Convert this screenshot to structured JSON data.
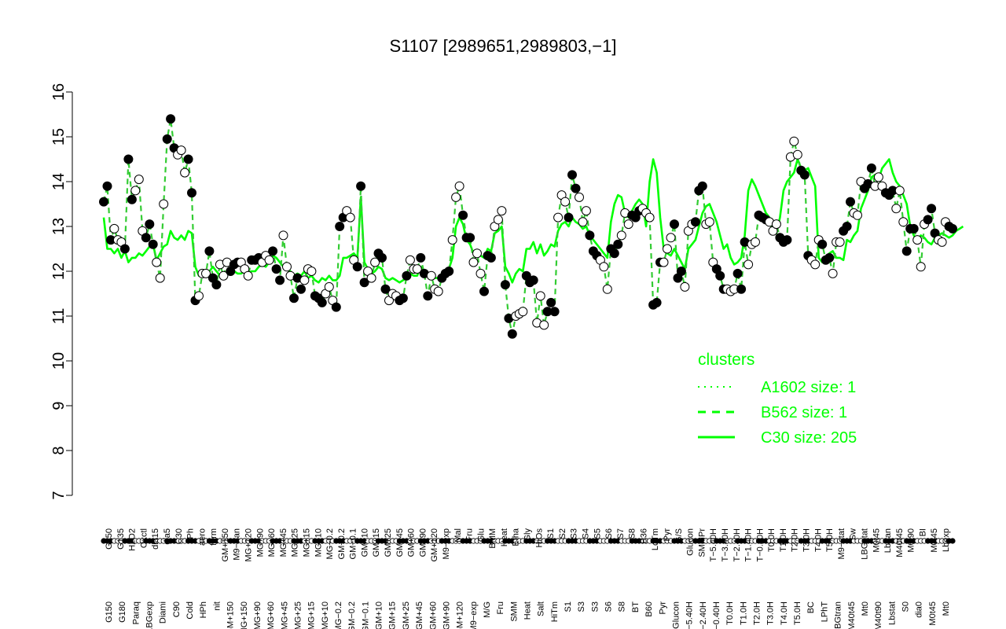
{
  "chart_data": {
    "type": "line",
    "title": "S1107 [2989651,2989803,−1]",
    "xlabel": "",
    "ylabel": "",
    "ylim": [
      7,
      16
    ],
    "yticks": [
      7,
      8,
      9,
      10,
      11,
      12,
      13,
      14,
      15,
      16
    ],
    "grid": false,
    "legend_position": "right",
    "legend": {
      "title": "clusters",
      "entries": [
        {
          "label": "A1602 size: 1",
          "style": "dotted"
        },
        {
          "label": "B562 size: 1",
          "style": "dashed"
        },
        {
          "label": "C30 size: 205",
          "style": "solid"
        }
      ]
    },
    "color": "#00ff00",
    "tick_labels_top": [
      "G150",
      "G135",
      "H2O2",
      "Oxctl",
      "dia15",
      "dia5",
      "C30",
      "LPh",
      "aero",
      "ferm",
      "GM+150",
      "M9−tran",
      "MG+120",
      "MG+90",
      "MG+60",
      "MG+45",
      "MG+25",
      "MG+15",
      "MG+10",
      "MG−0.2",
      "GM−0.2",
      "GM−0.1",
      "GM+10",
      "GM+15",
      "GM+25",
      "GM+45",
      "GM+60",
      "GM+90",
      "GM+120",
      "M9−exp",
      "Mal",
      "Fru",
      "Glu",
      "BMM",
      "Heat",
      "Etha",
      "Gly",
      "HiOs",
      "S1",
      "S2",
      "S3",
      "S4",
      "S5",
      "S6",
      "S7",
      "S8",
      "B36",
      "LoTm",
      "Pyr",
      "G/S",
      "Glucon",
      "SMMPr",
      "T−5.40H",
      "T−3.40H",
      "T−2.40H",
      "T−1.40H",
      "T−0.40H",
      "T0.0H",
      "T1.0H",
      "T2.0H",
      "T3.0H",
      "T4.0H",
      "T5.0H",
      "M9−stat",
      "Sw",
      "LBGstat",
      "M0t45",
      "Lbtran",
      "M40t45",
      "M0t90",
      "BI",
      "M0t45",
      "Lbexp"
    ],
    "tick_labels_bottom": [
      "G150",
      "G180",
      "Paraq",
      "LBGexp",
      "Diami",
      "C90",
      "Cold",
      "HPh",
      "nit",
      "GM+150",
      "MG+150",
      "MG+90",
      "MG+60",
      "MG+45",
      "MG+25",
      "MG+15",
      "MG+10",
      "MG−0.2",
      "GM−0.2",
      "GM−0.1",
      "GM+10",
      "GM+15",
      "GM+25",
      "GM+45",
      "GM+60",
      "GM+90",
      "GM+120",
      "M9−exp",
      "M/G",
      "Fru",
      "SMM",
      "Heat",
      "Salt",
      "HiTm",
      "S1",
      "S3",
      "S3",
      "S6",
      "S8",
      "BT",
      "B60",
      "Pyr",
      "Glucon",
      "T−5.40H",
      "T−2.40H",
      "T−0.40H",
      "T0.0H",
      "T1.0H",
      "T2.0H",
      "T3.0H",
      "T4.0H",
      "T5.0H",
      "BC",
      "LPhT",
      "LBGtran",
      "M40t45",
      "Mt0",
      "M40t90",
      "Lbstat",
      "S0",
      "dia0",
      "M0t45",
      "Mt0"
    ],
    "series": [
      {
        "name": "",
        "values": [
          13.55,
          13.9,
          12.7,
          12.95,
          12.7,
          12.65,
          12.5,
          14.5,
          13.6,
          13.8,
          14.05,
          12.9,
          12.75,
          13.05,
          12.6,
          12.2,
          11.85,
          13.5,
          14.95,
          15.4,
          14.75,
          14.6,
          14.7,
          14.2,
          14.5,
          13.75,
          11.35,
          11.45,
          11.95,
          11.95,
          12.45,
          11.85,
          11.7,
          12.15,
          11.9,
          12.2,
          12.0,
          12.15,
          12.2,
          12.2,
          12.05,
          11.9,
          12.25,
          12.25,
          12.3,
          12.2,
          12.35,
          12.25,
          12.45,
          12.05,
          11.8,
          12.8,
          12.1,
          11.9,
          11.4,
          11.85,
          11.6,
          11.8,
          12.05,
          12.0,
          11.45,
          11.4,
          11.3,
          11.5,
          11.65,
          11.35,
          11.2,
          13.0,
          13.2,
          13.35,
          13.2,
          12.25,
          12.1,
          13.9,
          11.75,
          12.0,
          11.85,
          12.2,
          12.4,
          12.3,
          11.6,
          11.35,
          11.5,
          11.45,
          11.35,
          11.4,
          11.9,
          12.25,
          12.05,
          12.05,
          12.3,
          11.95,
          11.45,
          11.9,
          11.6,
          11.55,
          11.85,
          11.95,
          12.0,
          12.7,
          13.65,
          13.9,
          13.25,
          12.75,
          12.75,
          12.2,
          12.4,
          11.95,
          11.55,
          12.35,
          12.3,
          13.0,
          13.15,
          13.35,
          11.7,
          10.95,
          10.6,
          11.0,
          11.05,
          11.1,
          11.9,
          11.75,
          11.8,
          10.85,
          11.45,
          10.8,
          11.1,
          11.3,
          11.1,
          13.2,
          13.7,
          13.55,
          13.2,
          14.15,
          13.85,
          13.65,
          13.1,
          13.35,
          12.8,
          12.45,
          12.35,
          12.25,
          12.1,
          11.6,
          12.5,
          12.4,
          12.6,
          12.8,
          13.3,
          13.05,
          13.25,
          13.2,
          13.35,
          13.4,
          13.3,
          13.2,
          11.25,
          11.3,
          12.2,
          12.2,
          12.5,
          12.75,
          13.05,
          11.85,
          12.0,
          11.65,
          12.9,
          13.05,
          13.1,
          13.8,
          13.9,
          13.05,
          13.1,
          12.2,
          12.05,
          11.9,
          11.6,
          11.6,
          11.55,
          11.6,
          11.95,
          11.6,
          12.65,
          12.15,
          12.6,
          12.65,
          13.25,
          13.2,
          13.15,
          13.1,
          12.9,
          13.05,
          12.75,
          12.65,
          12.7,
          14.55,
          14.9,
          14.6,
          14.25,
          14.15,
          12.35,
          12.25,
          12.15,
          12.7,
          12.6,
          12.25,
          12.3,
          11.95,
          12.65,
          12.65,
          12.9,
          13.0,
          13.55,
          13.3,
          13.25,
          14.0,
          13.85,
          13.95,
          14.3,
          13.9,
          14.1,
          13.9,
          13.75,
          13.7,
          13.8,
          13.4,
          13.8,
          13.1,
          12.45,
          12.95,
          12.95,
          12.7,
          12.1,
          13.05,
          13.15,
          13.4,
          12.85,
          12.7,
          12.65,
          13.1,
          13.0,
          12.95
        ]
      },
      {
        "name": "",
        "values": [
          13.2,
          12.5,
          12.5,
          12.4,
          12.5,
          12.3,
          12.45,
          12.2,
          12.3,
          12.3,
          12.4,
          12.35,
          12.45,
          12.55,
          12.6,
          12.25,
          12.4,
          12.55,
          12.6,
          12.9,
          12.75,
          12.7,
          12.8,
          12.7,
          12.9,
          12.85,
          12.1,
          11.9,
          11.9,
          11.95,
          12.0,
          12.1,
          12.0,
          11.9,
          11.95,
          11.95,
          12.0,
          12.0,
          11.95,
          11.95,
          12.0,
          11.95,
          12.0,
          12.0,
          12.1,
          12.15,
          12.1,
          12.2,
          12.35,
          12.3,
          12.2,
          12.1,
          12.05,
          12.0,
          11.9,
          11.95,
          11.9,
          12.0,
          11.85,
          11.9,
          11.8,
          11.75,
          11.85,
          11.8,
          11.9,
          11.8,
          11.8,
          11.9,
          12.3,
          12.3,
          12.35,
          12.4,
          12.3,
          13.65,
          12.2,
          12.05,
          11.95,
          12.0,
          12.1,
          12.05,
          11.85,
          11.8,
          11.85,
          11.8,
          11.75,
          11.8,
          11.85,
          11.95,
          11.9,
          11.9,
          12.1,
          12.0,
          11.95,
          11.9,
          11.85,
          11.85,
          11.95,
          11.9,
          12.05,
          12.3,
          13.0,
          13.2,
          13.05,
          12.7,
          12.6,
          12.4,
          12.45,
          12.35,
          12.3,
          12.5,
          12.45,
          12.85,
          12.9,
          13.0,
          12.1,
          11.95,
          11.75,
          11.95,
          12.05,
          12.0,
          12.5,
          12.5,
          12.65,
          12.4,
          12.6,
          12.35,
          12.45,
          12.6,
          12.55,
          12.9,
          13.05,
          13.1,
          13.0,
          13.2,
          13.1,
          13.05,
          12.95,
          13.0,
          12.8,
          12.7,
          12.6,
          12.5,
          12.4,
          12.3,
          13.1,
          13.5,
          13.7,
          13.65,
          13.3,
          13.2,
          13.35,
          13.5,
          13.6,
          13.5,
          13.0,
          14.0,
          14.5,
          14.2,
          13.2,
          12.5,
          12.4,
          12.35,
          12.5,
          12.35,
          12.2,
          12.05,
          12.5,
          12.6,
          12.7,
          13.0,
          13.3,
          13.45,
          13.5,
          13.3,
          13.1,
          12.8,
          12.5,
          12.6,
          12.3,
          12.15,
          12.2,
          12.3,
          12.8,
          13.8,
          14.05,
          13.9,
          13.7,
          13.5,
          13.3,
          13.2,
          13.0,
          12.85,
          13.2,
          13.8,
          14.0,
          14.1,
          14.2,
          14.5,
          14.3,
          14.25,
          14.3,
          14.1,
          13.9,
          12.3,
          12.2,
          12.2,
          12.4,
          12.45,
          12.3,
          12.3,
          12.25,
          12.7,
          12.65,
          12.8,
          12.9,
          13.4,
          13.6,
          13.8,
          14.1,
          14.15,
          14.05,
          14.3,
          14.4,
          14.5,
          14.2,
          14.0,
          13.9,
          13.7,
          13.5,
          13.0,
          12.8,
          12.7,
          12.8,
          12.75,
          12.65,
          12.6,
          12.75,
          12.8,
          12.85,
          12.8,
          12.75,
          12.8,
          12.9,
          12.95,
          13.0
        ]
      }
    ],
    "dashed_segment": "series 1 drawn with a dashed dark-green overlay on the point markers"
  }
}
